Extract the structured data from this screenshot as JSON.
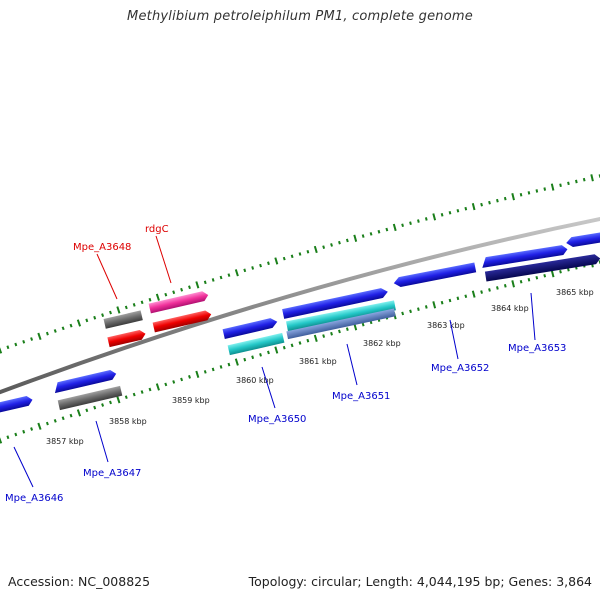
{
  "title": "Methylibium petroleiphilum PM1, complete genome",
  "footer": {
    "accession": "Accession: NC_008825",
    "summary": "Topology: circular; Length: 4,044,195 bp; Genes: 3,864"
  },
  "colors": {
    "tick": "#1a7f1a",
    "backbone": "#8a8a8a",
    "label_red": "#dd0000",
    "label_blue": "#0000cc"
  },
  "scale_labels": [
    "3857 kbp",
    "3858 kbp",
    "3859 kbp",
    "3860 kbp",
    "3861 kbp",
    "3862 kbp",
    "3863 kbp",
    "3864 kbp",
    "3865 kbp"
  ],
  "gene_labels": [
    {
      "name": "Mpe_A3648",
      "color": "red"
    },
    {
      "name": "rdgC",
      "color": "red"
    },
    {
      "name": "Mpe_A3646",
      "color": "blue"
    },
    {
      "name": "Mpe_A3647",
      "color": "blue"
    },
    {
      "name": "Mpe_A3650",
      "color": "blue"
    },
    {
      "name": "Mpe_A3651",
      "color": "blue"
    },
    {
      "name": "Mpe_A3652",
      "color": "blue"
    },
    {
      "name": "Mpe_A3653",
      "color": "blue"
    }
  ]
}
